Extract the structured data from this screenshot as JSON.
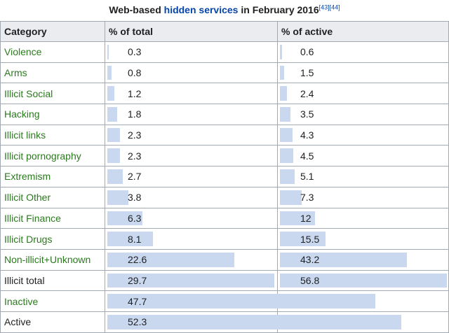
{
  "caption": {
    "prefix": "Web-based ",
    "link": "hidden services",
    "suffix": " in February 2016",
    "ref1": "[43]",
    "ref2": "[44]"
  },
  "headers": {
    "category": "Category",
    "pct_total": "% of total",
    "pct_active": "% of active"
  },
  "colors": {
    "bar": "#c9d8ef",
    "link_green": "#2a7b1d",
    "link_blue": "#0645ad",
    "header_bg": "#eaecf0",
    "border": "#a2a9b1"
  },
  "rows": [
    {
      "category": "Violence",
      "linked": true,
      "total": "0.3",
      "active": "0.6",
      "total_pct": 0.3,
      "active_pct": 0.6
    },
    {
      "category": "Arms",
      "linked": true,
      "total": "0.8",
      "active": "1.5",
      "total_pct": 0.8,
      "active_pct": 1.5
    },
    {
      "category": "Illicit Social",
      "linked": true,
      "total": "1.2",
      "active": "2.4",
      "total_pct": 1.2,
      "active_pct": 2.4
    },
    {
      "category": "Hacking",
      "linked": true,
      "total": "1.8",
      "active": "3.5",
      "total_pct": 1.8,
      "active_pct": 3.5
    },
    {
      "category": "Illicit links",
      "linked": true,
      "total": "2.3",
      "active": "4.3",
      "total_pct": 2.3,
      "active_pct": 4.3
    },
    {
      "category": "Illicit pornography",
      "linked": true,
      "total": "2.3",
      "active": "4.5",
      "total_pct": 2.3,
      "active_pct": 4.5
    },
    {
      "category": "Extremism",
      "linked": true,
      "total": "2.7",
      "active": "5.1",
      "total_pct": 2.7,
      "active_pct": 5.1
    },
    {
      "category": "Illicit Other",
      "linked": true,
      "total": "3.8",
      "active": "7.3",
      "total_pct": 3.8,
      "active_pct": 7.3
    },
    {
      "category": "Illicit Finance",
      "linked": true,
      "total": "6.3",
      "active": "12",
      "total_pct": 6.3,
      "active_pct": 12
    },
    {
      "category": "Illicit Drugs",
      "linked": true,
      "total": "8.1",
      "active": "15.5",
      "total_pct": 8.1,
      "active_pct": 15.5
    },
    {
      "category": "Non-illicit+Unknown",
      "linked": true,
      "total": "22.6",
      "active": "43.2",
      "total_pct": 22.6,
      "active_pct": 43.2
    },
    {
      "category": "Illicit total",
      "linked": false,
      "total": "29.7",
      "active": "56.8",
      "total_pct": 29.7,
      "active_pct": 56.8
    },
    {
      "category": "Inactive",
      "linked": true,
      "total": "47.7",
      "active": "",
      "total_pct": 47.7,
      "active_pct": null
    },
    {
      "category": "Active",
      "linked": false,
      "total": "52.3",
      "active": "",
      "total_pct": 52.3,
      "active_pct": null
    }
  ]
}
